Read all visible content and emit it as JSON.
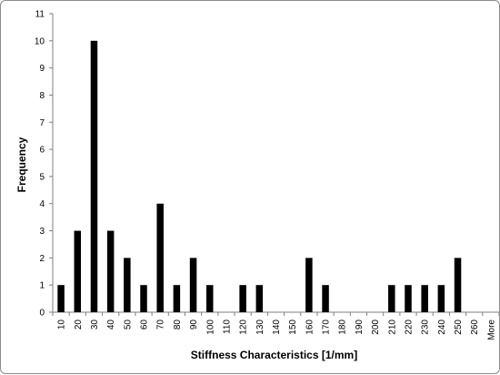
{
  "chart_data": {
    "type": "bar",
    "title": "",
    "xlabel": "Stiffness Characteristics [1/mm]",
    "ylabel": "Frequency",
    "ylim": [
      0,
      11
    ],
    "yticks": [
      0,
      1,
      2,
      3,
      4,
      5,
      6,
      7,
      8,
      9,
      10,
      11
    ],
    "grid": false,
    "legend": "none",
    "bar_color": "#000000",
    "categories": [
      "10",
      "20",
      "30",
      "40",
      "50",
      "60",
      "70",
      "80",
      "90",
      "100",
      "110",
      "120",
      "130",
      "140",
      "150",
      "160",
      "170",
      "180",
      "190",
      "200",
      "210",
      "220",
      "230",
      "240",
      "250",
      "260",
      "More"
    ],
    "series": [
      {
        "values": [
          1,
          3,
          10,
          3,
          2,
          1,
          4,
          1,
          2,
          1,
          0,
          1,
          1,
          0,
          0,
          2,
          1,
          0,
          0,
          0,
          1,
          1,
          1,
          1,
          2,
          0,
          0
        ]
      }
    ]
  }
}
